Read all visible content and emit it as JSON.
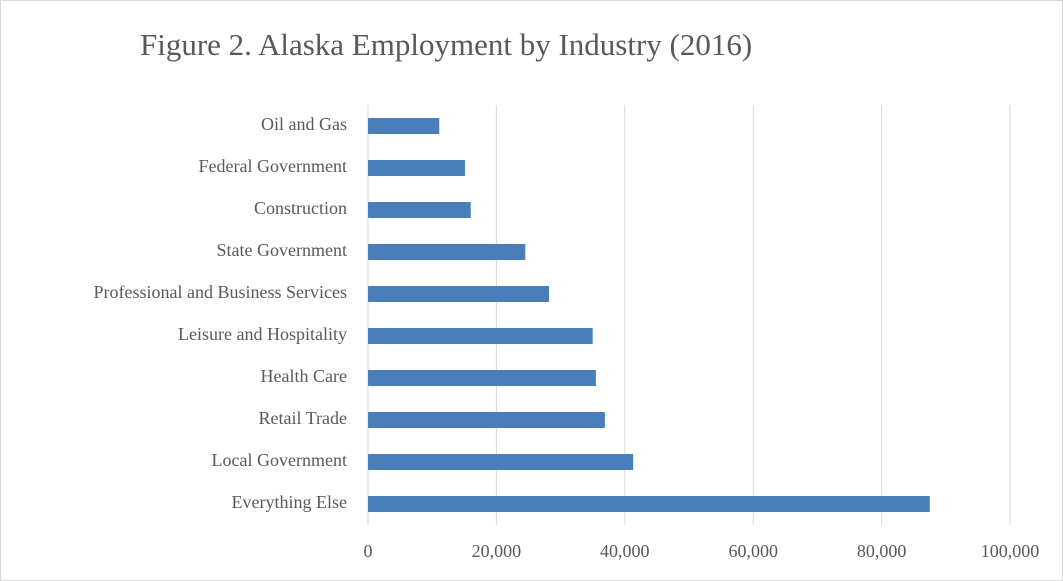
{
  "chart_data": {
    "type": "bar",
    "orientation": "horizontal",
    "title": "Figure 2. Alaska Employment by Industry (2016)",
    "categories": [
      "Oil and Gas",
      "Federal Government",
      "Construction",
      "State Government",
      "Professional and Business Services",
      "Leisure and Hospitality",
      "Health Care",
      "Retail Trade",
      "Local Government",
      "Everything Else"
    ],
    "values": [
      11100,
      15100,
      16000,
      24500,
      28200,
      35000,
      35500,
      36900,
      41300,
      87500
    ],
    "color": "#4a7ebb",
    "xlim": [
      0,
      100000
    ],
    "xticks": [
      0,
      {
        "value": 20000,
        "label": "20,000"
      },
      {
        "value": 40000,
        "label": "40,000"
      },
      {
        "value": 60000,
        "label": "60,000"
      },
      {
        "value": 80000,
        "label": "80,000"
      },
      {
        "value": 100000,
        "label": "100,000"
      }
    ],
    "grid": true
  }
}
